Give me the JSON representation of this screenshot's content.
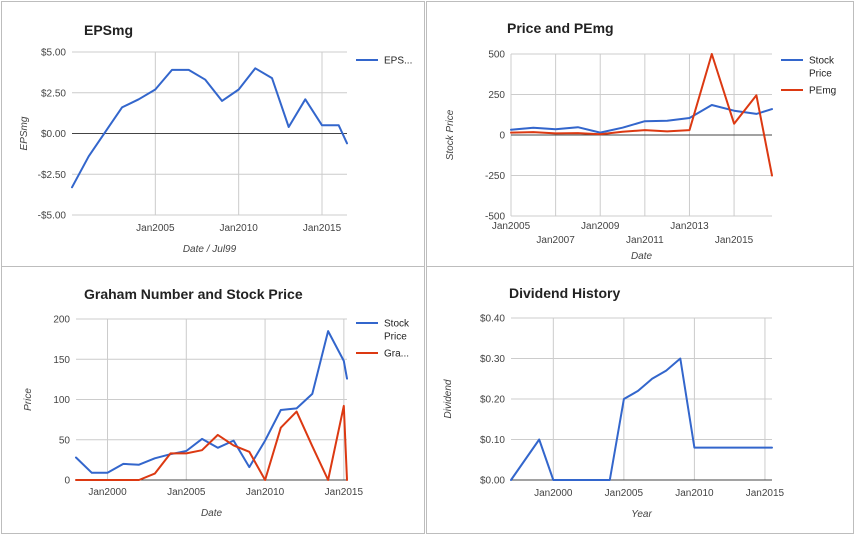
{
  "chart_data": [
    {
      "id": "eps",
      "type": "line",
      "title": "EPSmg",
      "xlabel": "Date / Jul99",
      "ylabel": "EPSmg",
      "x_ticks": [
        {
          "x": 2005,
          "label": "Jan2005"
        },
        {
          "x": 2010,
          "label": "Jan2010"
        },
        {
          "x": 2015,
          "label": "Jan2015"
        }
      ],
      "y_ticks": [
        {
          "y": 5,
          "label": "$5.00"
        },
        {
          "y": 2.5,
          "label": "$2.50"
        },
        {
          "y": 0,
          "label": "$0.00"
        },
        {
          "y": -2.5,
          "label": "-$2.50"
        },
        {
          "y": -5,
          "label": "-$5.00"
        }
      ],
      "xlim": [
        2000.0,
        2016.5
      ],
      "ylim": [
        -5,
        5
      ],
      "grid": true,
      "legend": "right",
      "series": [
        {
          "name": "EPS...",
          "color": "#3366cc",
          "x": [
            2000.0,
            2001.0,
            2002.0,
            2003.0,
            2004.0,
            2005.0,
            2006.0,
            2007.0,
            2008.0,
            2009.0,
            2010.0,
            2011.0,
            2012.0,
            2013.0,
            2014.0,
            2015.0,
            2016.0,
            2016.5
          ],
          "y": [
            -3.3,
            -1.4,
            0.1,
            1.6,
            2.1,
            2.7,
            3.9,
            3.9,
            3.3,
            2.0,
            2.7,
            4.0,
            3.4,
            0.4,
            2.1,
            0.5,
            0.5,
            -0.6
          ]
        }
      ]
    },
    {
      "id": "price-pe",
      "type": "line",
      "title": "Price and PEmg",
      "xlabel": "Date",
      "ylabel": "Stock Price",
      "x_ticks": [
        {
          "x": 2005,
          "label": "Jan2005"
        },
        {
          "x": 2007,
          "label": "Jan2007"
        },
        {
          "x": 2009,
          "label": "Jan2009"
        },
        {
          "x": 2011,
          "label": "Jan2011"
        },
        {
          "x": 2013,
          "label": "Jan2013"
        },
        {
          "x": 2015,
          "label": "Jan2015"
        }
      ],
      "y_ticks": [
        {
          "y": 500,
          "label": "500"
        },
        {
          "y": 250,
          "label": "250"
        },
        {
          "y": 0,
          "label": "0"
        },
        {
          "y": -250,
          "label": "-250"
        },
        {
          "y": -500,
          "label": "-500"
        }
      ],
      "xlim": [
        2005.0,
        2016.7
      ],
      "ylim": [
        -500,
        500
      ],
      "grid": true,
      "legend": "right",
      "series": [
        {
          "name": "Stock Price",
          "color": "#3366cc",
          "x": [
            2005.0,
            2006.0,
            2007.0,
            2008.0,
            2009.0,
            2010.0,
            2011.0,
            2012.0,
            2013.0,
            2014.0,
            2015.0,
            2016.0,
            2016.7
          ],
          "y": [
            32,
            45,
            36,
            48,
            15,
            45,
            85,
            88,
            105,
            185,
            150,
            130,
            160
          ]
        },
        {
          "name": "PEmg",
          "color": "#dc3912",
          "x": [
            2005.0,
            2006.0,
            2007.0,
            2008.0,
            2009.0,
            2010.0,
            2011.0,
            2012.0,
            2013.0,
            2014.0,
            2015.0,
            2016.0,
            2016.7
          ],
          "y": [
            15,
            18,
            10,
            12,
            5,
            20,
            30,
            22,
            30,
            500,
            70,
            245,
            -250
          ]
        }
      ]
    },
    {
      "id": "graham",
      "type": "line",
      "title": "Graham Number and Stock Price",
      "xlabel": "Date",
      "ylabel": "Price",
      "x_ticks": [
        {
          "x": 2000,
          "label": "Jan2000"
        },
        {
          "x": 2005,
          "label": "Jan2005"
        },
        {
          "x": 2010,
          "label": "Jan2010"
        },
        {
          "x": 2015,
          "label": "Jan2015"
        }
      ],
      "y_ticks": [
        {
          "y": 200,
          "label": "200"
        },
        {
          "y": 150,
          "label": "150"
        },
        {
          "y": 100,
          "label": "100"
        },
        {
          "y": 50,
          "label": "50"
        },
        {
          "y": 0,
          "label": "0"
        }
      ],
      "xlim": [
        1998.0,
        2015.2
      ],
      "ylim": [
        0,
        200
      ],
      "grid": true,
      "legend": "right",
      "series": [
        {
          "name": "Stock Price",
          "color": "#3366cc",
          "x": [
            1998,
            1999,
            2000,
            2001,
            2002,
            2003,
            2004,
            2005,
            2006,
            2007,
            2008,
            2009,
            2010,
            2011,
            2012,
            2013,
            2014,
            2015,
            2015.2
          ],
          "y": [
            28,
            9,
            9,
            20,
            19,
            27,
            32,
            36,
            51,
            40,
            49,
            16,
            49,
            87,
            89,
            107,
            185,
            148,
            126
          ]
        },
        {
          "name": "Gra...",
          "color": "#dc3912",
          "x": [
            1998,
            1999,
            2000,
            2001,
            2002,
            2003,
            2004,
            2005,
            2006,
            2007,
            2008,
            2009,
            2010,
            2011,
            2012,
            2013,
            2014,
            2015,
            2015.2
          ],
          "y": [
            0,
            0,
            0,
            0,
            0,
            8,
            33,
            33,
            37,
            56,
            43,
            35,
            0,
            65,
            85,
            42,
            0,
            92,
            0
          ]
        }
      ]
    },
    {
      "id": "dividend",
      "type": "line",
      "title": "Dividend History",
      "xlabel": "Year",
      "ylabel": "Dividend",
      "x_ticks": [
        {
          "x": 2000,
          "label": "Jan2000"
        },
        {
          "x": 2005,
          "label": "Jan2005"
        },
        {
          "x": 2010,
          "label": "Jan2010"
        },
        {
          "x": 2015,
          "label": "Jan2015"
        }
      ],
      "y_ticks": [
        {
          "y": 0.4,
          "label": "$0.40"
        },
        {
          "y": 0.3,
          "label": "$0.30"
        },
        {
          "y": 0.2,
          "label": "$0.20"
        },
        {
          "y": 0.1,
          "label": "$0.10"
        },
        {
          "y": 0,
          "label": "$0.00"
        }
      ],
      "xlim": [
        1997.0,
        2015.5
      ],
      "ylim": [
        0,
        0.4
      ],
      "grid": true,
      "legend": "none",
      "series": [
        {
          "name": "",
          "color": "#3366cc",
          "x": [
            1997,
            1999,
            2000,
            2001,
            2002,
            2003,
            2004,
            2005,
            2006,
            2007,
            2008,
            2009,
            2010,
            2011,
            2012,
            2013,
            2014,
            2015,
            2015.5
          ],
          "y": [
            0.0,
            0.1,
            0.0,
            0.0,
            0.0,
            0.0,
            0.0,
            0.2,
            0.22,
            0.25,
            0.27,
            0.3,
            0.08,
            0.08,
            0.08,
            0.08,
            0.08,
            0.08,
            0.08
          ]
        }
      ]
    }
  ]
}
